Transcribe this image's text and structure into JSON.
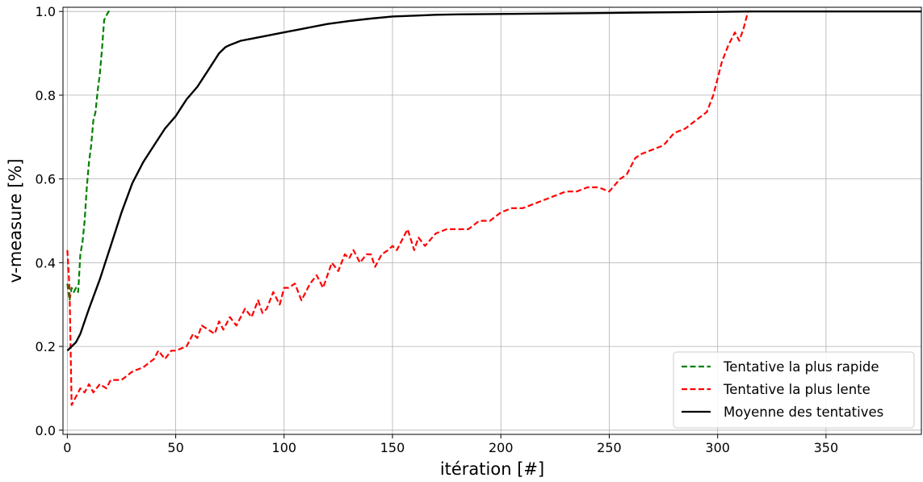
{
  "chart_data": {
    "type": "line",
    "title": "",
    "xlabel": "itération [#]",
    "ylabel": "v-measure [%]",
    "xlim": [
      -2,
      394
    ],
    "ylim": [
      -0.01,
      1.01
    ],
    "xticks": [
      0,
      50,
      100,
      150,
      200,
      250,
      300,
      350
    ],
    "yticks": [
      0.0,
      0.2,
      0.4,
      0.6,
      0.8,
      1.0
    ],
    "xtick_labels": [
      "0",
      "50",
      "100",
      "150",
      "200",
      "250",
      "300",
      "350"
    ],
    "ytick_labels": [
      "0.0",
      "0.2",
      "0.4",
      "0.6",
      "0.8",
      "1.0"
    ],
    "grid": true,
    "legend_position": "lower-right",
    "series": [
      {
        "name": "Tentative la plus rapide",
        "color": "#008000",
        "style": "dashed",
        "x": [
          0,
          1,
          2,
          3,
          4,
          5,
          6,
          7,
          8,
          9,
          10,
          11,
          12,
          13,
          14,
          15,
          16,
          17,
          18,
          19,
          20
        ],
        "y": [
          0.35,
          0.31,
          0.34,
          0.33,
          0.34,
          0.33,
          0.42,
          0.45,
          0.5,
          0.58,
          0.64,
          0.68,
          0.74,
          0.76,
          0.81,
          0.85,
          0.91,
          0.98,
          0.99,
          1.0,
          1.0
        ]
      },
      {
        "name": "Tentative la plus lente",
        "color": "#ff0000",
        "style": "dashed",
        "x": [
          0,
          1,
          2,
          4,
          6,
          8,
          10,
          12,
          15,
          18,
          20,
          25,
          30,
          35,
          40,
          42,
          45,
          48,
          50,
          55,
          58,
          60,
          62,
          65,
          68,
          70,
          72,
          75,
          78,
          80,
          82,
          85,
          88,
          90,
          92,
          95,
          98,
          100,
          102,
          105,
          108,
          110,
          112,
          115,
          118,
          120,
          122,
          125,
          128,
          130,
          132,
          135,
          138,
          140,
          142,
          145,
          148,
          150,
          152,
          155,
          157,
          160,
          162,
          165,
          170,
          175,
          180,
          185,
          190,
          195,
          200,
          205,
          210,
          215,
          220,
          225,
          230,
          235,
          240,
          245,
          250,
          255,
          258,
          260,
          262,
          265,
          270,
          275,
          280,
          285,
          290,
          295,
          298,
          300,
          302,
          305,
          308,
          310,
          312,
          314,
          316
        ],
        "y": [
          0.43,
          0.34,
          0.06,
          0.08,
          0.1,
          0.09,
          0.11,
          0.09,
          0.11,
          0.1,
          0.12,
          0.12,
          0.14,
          0.15,
          0.17,
          0.19,
          0.17,
          0.19,
          0.19,
          0.2,
          0.23,
          0.22,
          0.25,
          0.24,
          0.23,
          0.26,
          0.24,
          0.27,
          0.25,
          0.27,
          0.29,
          0.27,
          0.31,
          0.28,
          0.29,
          0.33,
          0.3,
          0.34,
          0.34,
          0.35,
          0.31,
          0.33,
          0.35,
          0.37,
          0.34,
          0.37,
          0.4,
          0.38,
          0.42,
          0.41,
          0.43,
          0.4,
          0.42,
          0.42,
          0.39,
          0.42,
          0.43,
          0.44,
          0.43,
          0.46,
          0.48,
          0.43,
          0.46,
          0.44,
          0.47,
          0.48,
          0.48,
          0.48,
          0.5,
          0.5,
          0.52,
          0.53,
          0.53,
          0.54,
          0.55,
          0.56,
          0.57,
          0.57,
          0.58,
          0.58,
          0.57,
          0.6,
          0.61,
          0.63,
          0.65,
          0.66,
          0.67,
          0.68,
          0.71,
          0.72,
          0.74,
          0.76,
          0.8,
          0.84,
          0.88,
          0.92,
          0.95,
          0.93,
          0.96,
          1.0,
          1.0
        ]
      },
      {
        "name": "Moyenne des tentatives",
        "color": "#000000",
        "style": "solid",
        "x": [
          0,
          2,
          4,
          6,
          8,
          10,
          15,
          20,
          25,
          30,
          35,
          40,
          45,
          50,
          55,
          60,
          65,
          70,
          73,
          75,
          80,
          85,
          90,
          95,
          100,
          110,
          120,
          130,
          140,
          150,
          160,
          170,
          180,
          200,
          220,
          240,
          260,
          280,
          300,
          315,
          340,
          360,
          394
        ],
        "y": [
          0.19,
          0.2,
          0.21,
          0.23,
          0.26,
          0.29,
          0.36,
          0.44,
          0.52,
          0.59,
          0.64,
          0.68,
          0.72,
          0.75,
          0.79,
          0.82,
          0.86,
          0.9,
          0.915,
          0.92,
          0.93,
          0.935,
          0.94,
          0.945,
          0.95,
          0.96,
          0.97,
          0.977,
          0.983,
          0.988,
          0.99,
          0.992,
          0.993,
          0.994,
          0.995,
          0.996,
          0.997,
          0.998,
          0.999,
          1.0,
          1.0,
          1.0,
          1.0
        ]
      }
    ]
  }
}
